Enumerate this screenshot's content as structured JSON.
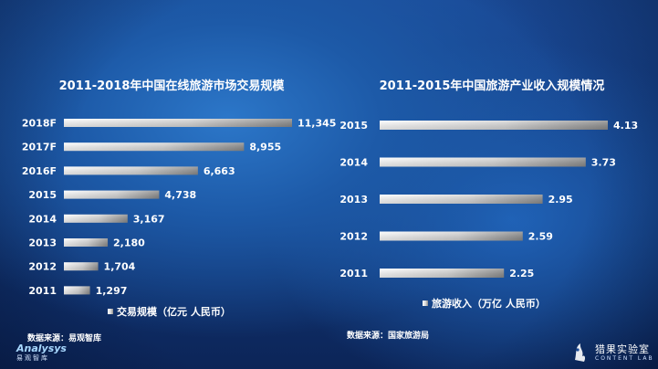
{
  "chart_data": [
    {
      "type": "bar",
      "orientation": "horizontal",
      "title": "2011-2018年中国在线旅游市场交易规模",
      "categories": [
        "2018F",
        "2017F",
        "2016F",
        "2015",
        "2014",
        "2013",
        "2012",
        "2011"
      ],
      "values": [
        11345,
        8955,
        6663,
        4738,
        3167,
        2180,
        1704,
        1297
      ],
      "value_labels": [
        "11,345",
        "8,955",
        "6,663",
        "4,738",
        "3,167",
        "2,180",
        "1,704",
        "1,297"
      ],
      "legend": "交易规模（亿元 人民币）",
      "source": "数据来源：易观智库",
      "grid": false,
      "legend_position": "bottom"
    },
    {
      "type": "bar",
      "orientation": "horizontal",
      "title": "2011-2015年中国旅游产业收入规模情况",
      "categories": [
        "2015",
        "2014",
        "2013",
        "2012",
        "2011"
      ],
      "values": [
        4.13,
        3.73,
        2.95,
        2.59,
        2.25
      ],
      "value_labels": [
        "4.13",
        "3.73",
        "2.95",
        "2.59",
        "2.25"
      ],
      "legend": "旅游收入（万亿 人民币）",
      "source": "数据来源：国家旅游局",
      "grid": false,
      "legend_position": "bottom"
    }
  ],
  "logos": {
    "left": {
      "name": "Analysys",
      "sub": "易观智库"
    },
    "right": {
      "name": "猎果实验室",
      "sub": "CONTENT LAB"
    }
  },
  "colors": {
    "bar_light": "#ffffff",
    "bar_dark": "#8a8a8a",
    "text": "#ffffff"
  }
}
